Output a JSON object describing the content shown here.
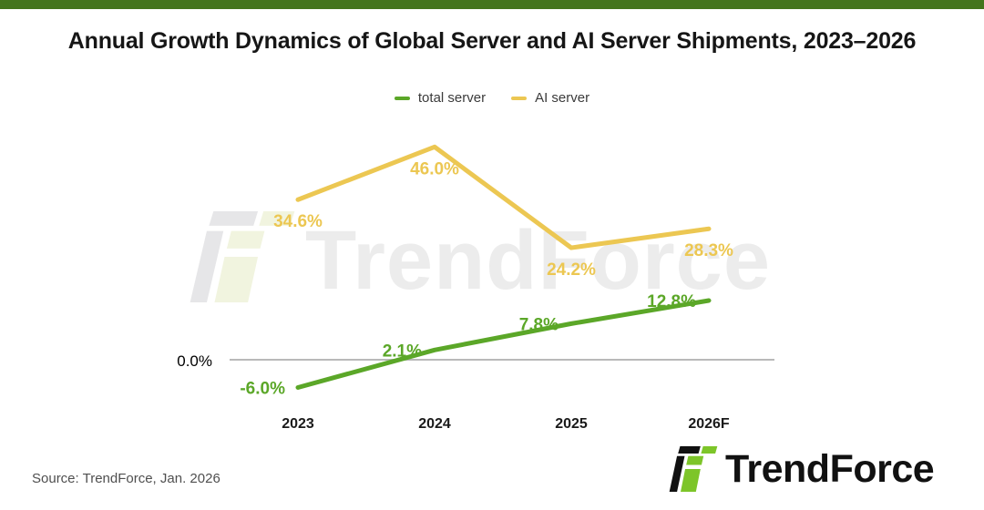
{
  "page": {
    "title": "Annual Growth Dynamics of Global Server and AI Server Shipments, 2023–2026"
  },
  "legend": [
    {
      "label": "total server",
      "color": "#5ba728"
    },
    {
      "label": "AI server",
      "color": "#ecc752"
    }
  ],
  "chart_data": {
    "type": "line",
    "categories": [
      "2023",
      "2024",
      "2025",
      "2026F"
    ],
    "series": [
      {
        "name": "total server",
        "color": "#5ba728",
        "values": [
          -6.0,
          2.1,
          7.8,
          12.8
        ],
        "labels": [
          "-6.0%",
          "2.1%",
          "7.8%",
          "12.8%"
        ],
        "label_side": "left"
      },
      {
        "name": "AI server",
        "color": "#ecc752",
        "values": [
          34.6,
          46.0,
          24.2,
          28.3
        ],
        "labels": [
          "34.6%",
          "46.0%",
          "24.2%",
          "28.3%"
        ],
        "label_side": "below"
      }
    ],
    "baseline_label": "0.0%",
    "xlabel": "",
    "ylabel": "",
    "grid": "zero-line-only",
    "legend_position": "top-center"
  },
  "watermark": {
    "text": "TrendForce"
  },
  "footer": {
    "source": "Source: TrendForce, Jan. 2026"
  },
  "logo": {
    "text": "TrendForce"
  },
  "colors": {
    "top_bar": "#44751d",
    "total_server": "#5ba728",
    "ai_server": "#ecc752",
    "axis_line": "#b9b9b9",
    "axis_label": "#000000",
    "category_label": "#1a1a1a",
    "logo_black": "#111111",
    "logo_green": "#7dc529",
    "watermark_gray": "#e6e6e8",
    "watermark_green": "#f1f4df",
    "watermark_text": "#ececec"
  }
}
